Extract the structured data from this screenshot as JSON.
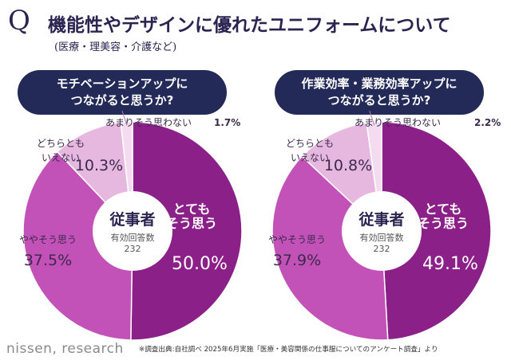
{
  "header": {
    "q_mark": "Q",
    "title": "機能性やデザインに優れたユニフォームについて",
    "subtitle": "(医療・理美容・介護など)"
  },
  "colors": {
    "navy": "#232a57",
    "dark_purple": "#8b2088",
    "mid_purple": "#c251b8",
    "light_purple": "#e6b8e0",
    "pale_purple": "#f3dcf0"
  },
  "chart_data": [
    {
      "type": "pie",
      "style": "donut",
      "title": "モチベーションアップに\nつながると思うか?",
      "center_label": "従事者",
      "center_sub": "有効回答数",
      "center_n": "232",
      "slices": [
        {
          "label": "とても\nそう思う",
          "value": 50.0,
          "display": "50.0%"
        },
        {
          "label": "ややそう思う",
          "value": 37.5,
          "display": "37.5%"
        },
        {
          "label": "どちらとも\nいえない",
          "value": 10.3,
          "display": "10.3%"
        },
        {
          "label": "あまりそう思わない",
          "value": 1.7,
          "display": "1.7%"
        }
      ]
    },
    {
      "type": "pie",
      "style": "donut",
      "title": "作業効率・業務効率アップに\nつながると思うか?",
      "center_label": "従事者",
      "center_sub": "有効回答数",
      "center_n": "232",
      "slices": [
        {
          "label": "とても\nそう思う",
          "value": 49.1,
          "display": "49.1%"
        },
        {
          "label": "ややそう思う",
          "value": 37.9,
          "display": "37.9%"
        },
        {
          "label": "どちらとも\nいえない",
          "value": 10.8,
          "display": "10.8%"
        },
        {
          "label": "あまりそう思わない",
          "value": 2.2,
          "display": "2.2%"
        }
      ]
    }
  ],
  "footer": {
    "brand": "nissen, research",
    "note": "※調査出典:自社調べ 2025年6月実施「医療・美容関係の仕事服についてのアンケート調査」より"
  }
}
